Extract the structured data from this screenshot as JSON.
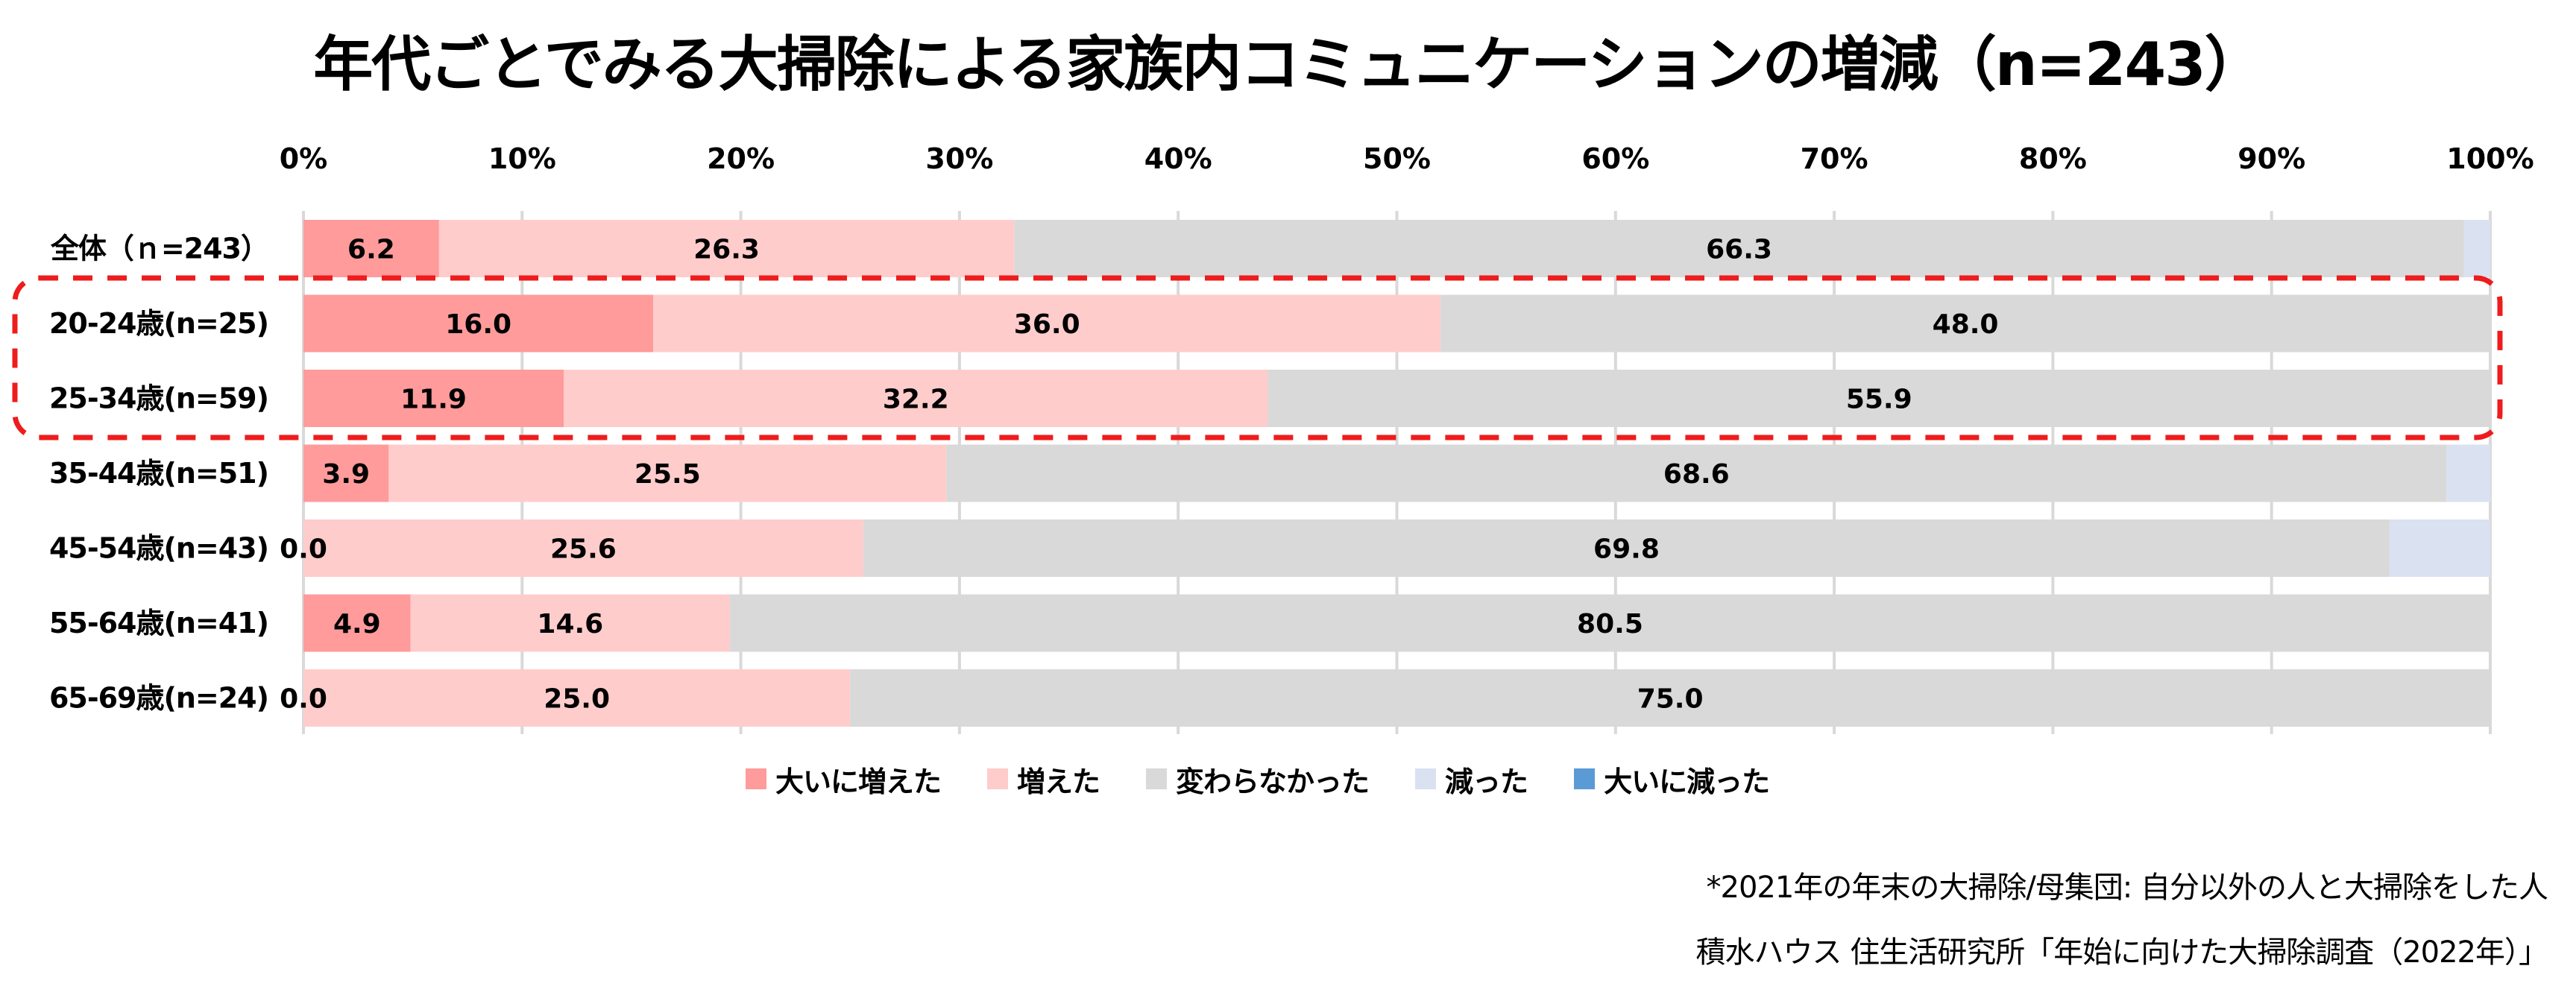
{
  "title": "年代ごとでみる大掃除による家族内コミュニケーションの増減（n=243）",
  "chart_data": {
    "type": "bar",
    "orientation": "horizontal",
    "stacked": "percent",
    "title": "年代ごとでみる大掃除による家族内コミュニケーションの増減（n=243）",
    "xlabel": "",
    "ylabel": "",
    "xlim": [
      0,
      100
    ],
    "x_ticks": [
      "0%",
      "10%",
      "20%",
      "30%",
      "40%",
      "50%",
      "60%",
      "70%",
      "80%",
      "90%",
      "100%"
    ],
    "grid": true,
    "legend_position": "bottom",
    "categories": [
      "全体（ｎ=243）",
      "20-24歳(n=25)",
      "25-34歳(n=59)",
      "35-44歳(n=51)",
      "45-54歳(n=43)",
      "55-64歳(n=41)",
      "65-69歳(n=24)"
    ],
    "series": [
      {
        "name": "大いに増えた",
        "color": "#FF9B9B",
        "values": [
          6.2,
          16.0,
          11.9,
          3.9,
          0.0,
          4.9,
          0.0
        ],
        "labels": [
          "6.2",
          "16.0",
          "11.9",
          "3.9",
          "0.0",
          "4.9",
          "0.0"
        ]
      },
      {
        "name": "増えた",
        "color": "#FFCCCC",
        "values": [
          26.3,
          36.0,
          32.2,
          25.5,
          25.6,
          14.6,
          25.0
        ],
        "labels": [
          "26.3",
          "36.0",
          "32.2",
          "25.5",
          "25.6",
          "14.6",
          "25.0"
        ]
      },
      {
        "name": "変わらなかった",
        "color": "#D9D9D9",
        "values": [
          66.3,
          48.0,
          55.9,
          68.6,
          69.8,
          80.5,
          75.0
        ],
        "labels": [
          "66.3",
          "48.0",
          "55.9",
          "68.6",
          "69.8",
          "80.5",
          "75.0"
        ]
      },
      {
        "name": "減った",
        "color": "#DAE1F1",
        "values": [
          1.2,
          0.0,
          0.0,
          2.0,
          4.6,
          0.0,
          0.0
        ],
        "labels": [
          "",
          "",
          "",
          "",
          "",
          "",
          ""
        ]
      },
      {
        "name": "大いに減った",
        "color": "#5B9BD5",
        "values": [
          0.0,
          0.0,
          0.0,
          0.0,
          0.0,
          0.0,
          0.0
        ],
        "labels": [
          "",
          "",
          "",
          "",
          "",
          "",
          ""
        ]
      }
    ],
    "highlight": {
      "categories": [
        "20-24歳(n=25)",
        "25-34歳(n=59)"
      ],
      "style": "red dashed rounded box",
      "color": "#EE1C1C"
    }
  },
  "notes": {
    "base": "*2021年の年末の大掃除/母集団: 自分以外の人と大掃除をした人",
    "source": "積水ハウス 住生活研究所「年始に向けた大掃除調査（2022年）」"
  }
}
